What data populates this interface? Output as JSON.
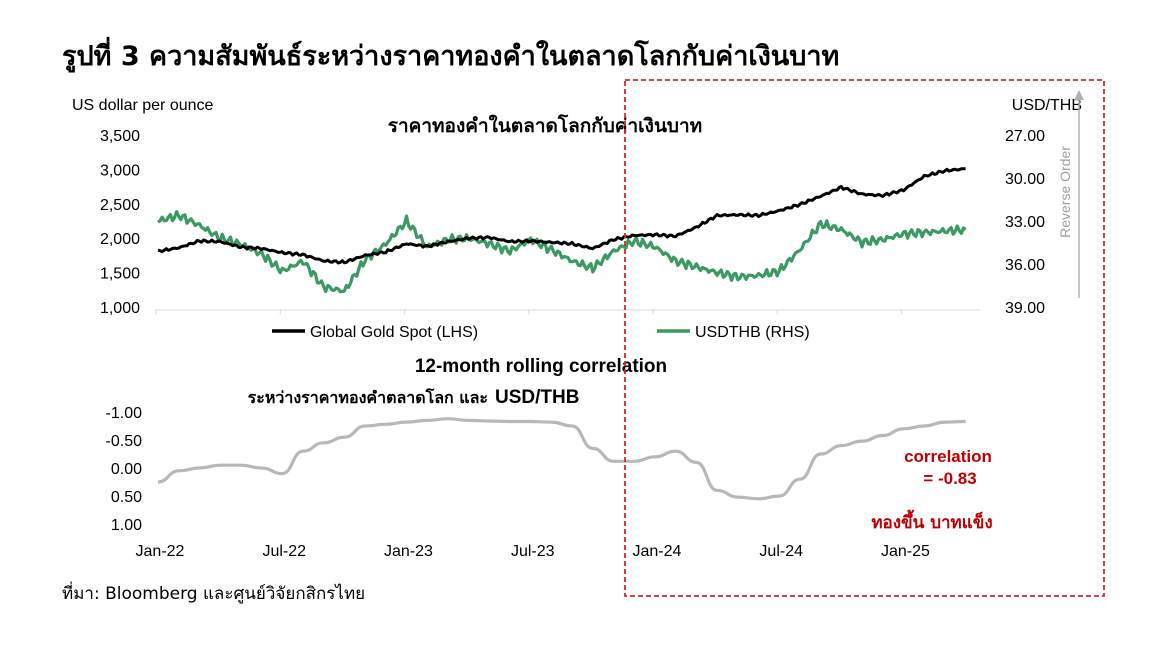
{
  "figure_title": "รูปที่ 3 ความสัมพันธ์ระหว่างราคาทองคำในตลาดโลกกับค่าเงินบาท",
  "source_note": "ที่มา: Bloomberg และศูนย์วิจัยกสิกรไทย",
  "colors": {
    "gold": "#000000",
    "thb": "#3a9a62",
    "corr": "#b8b8b8",
    "highlight": "#d62828",
    "note": "#c00000"
  },
  "chart_data": [
    {
      "type": "line",
      "title": "ราคาทองคำในตลาดโลกกับค่าเงินบาท",
      "y_left_label": "US dollar per ounce",
      "y_right_label": "USD/THB",
      "y_right_note": "Reverse Order",
      "y_left_ticks": [
        "1,000",
        "1,500",
        "2,000",
        "2,500",
        "3,000",
        "3,500"
      ],
      "y_right_ticks": [
        "27.00",
        "30.00",
        "33.00",
        "36.00",
        "39.00"
      ],
      "y_left_range": [
        1000,
        3500
      ],
      "y_right_range": [
        27,
        39
      ],
      "y_right_reversed": true,
      "x_range": [
        "2022-01",
        "2025-04"
      ],
      "series": [
        {
          "name": "Global Gold Spot (LHS)",
          "axis": "left",
          "x": [
            "2022-01",
            "2022-02",
            "2022-03",
            "2022-04",
            "2022-05",
            "2022-06",
            "2022-07",
            "2022-08",
            "2022-09",
            "2022-10",
            "2022-11",
            "2022-12",
            "2023-01",
            "2023-02",
            "2023-03",
            "2023-04",
            "2023-05",
            "2023-06",
            "2023-07",
            "2023-08",
            "2023-09",
            "2023-10",
            "2023-11",
            "2023-12",
            "2024-01",
            "2024-02",
            "2024-03",
            "2024-04",
            "2024-05",
            "2024-06",
            "2024-07",
            "2024-08",
            "2024-09",
            "2024-10",
            "2024-11",
            "2024-12",
            "2025-01",
            "2025-02",
            "2025-03",
            "2025-04"
          ],
          "values": [
            1810,
            1860,
            1960,
            1950,
            1870,
            1850,
            1790,
            1760,
            1670,
            1650,
            1750,
            1800,
            1920,
            1880,
            1950,
            2000,
            2010,
            1950,
            1960,
            1940,
            1920,
            1850,
            1980,
            2040,
            2050,
            2030,
            2160,
            2330,
            2340,
            2330,
            2400,
            2490,
            2610,
            2740,
            2640,
            2620,
            2700,
            2900,
            2980,
            3010
          ]
        },
        {
          "name": "USDTHB (RHS)",
          "axis": "right",
          "x": [
            "2022-01",
            "2022-02",
            "2022-03",
            "2022-04",
            "2022-05",
            "2022-06",
            "2022-07",
            "2022-08",
            "2022-09",
            "2022-10",
            "2022-11",
            "2022-12",
            "2023-01",
            "2023-02",
            "2023-03",
            "2023-04",
            "2023-05",
            "2023-06",
            "2023-07",
            "2023-08",
            "2023-09",
            "2023-10",
            "2023-11",
            "2023-12",
            "2024-01",
            "2024-02",
            "2024-03",
            "2024-04",
            "2024-05",
            "2024-06",
            "2024-07",
            "2024-08",
            "2024-09",
            "2024-10",
            "2024-11",
            "2024-12",
            "2025-01",
            "2025-02",
            "2025-03",
            "2025-04"
          ],
          "values": [
            33.0,
            32.6,
            33.3,
            34.2,
            34.6,
            35.3,
            36.5,
            35.8,
            37.6,
            37.9,
            35.7,
            34.6,
            33.0,
            34.8,
            34.3,
            34.2,
            34.6,
            35.1,
            34.3,
            35.0,
            35.8,
            36.3,
            35.1,
            34.4,
            34.8,
            35.8,
            36.2,
            36.6,
            36.9,
            36.8,
            36.5,
            35.0,
            33.2,
            33.6,
            34.5,
            34.3,
            33.9,
            33.8,
            33.7,
            33.6
          ]
        }
      ]
    },
    {
      "type": "line",
      "title": "12-month rolling correlation",
      "subtitle_thai": "ระหว่างราคาทองคำตลาดโลก และ",
      "subtitle_en": "USD/THB",
      "y_ticks": [
        "-1.00",
        "-0.50",
        "0.00",
        "0.50",
        "1.00"
      ],
      "y_range": [
        -1.0,
        1.0
      ],
      "y_reversed": true,
      "x_tick_labels": [
        "Jan-22",
        "Jul-22",
        "Jan-23",
        "Jul-23",
        "Jan-24",
        "Jul-24",
        "Jan-25"
      ],
      "series": [
        {
          "name": "",
          "x": [
            "2022-01",
            "2022-02",
            "2022-03",
            "2022-04",
            "2022-05",
            "2022-06",
            "2022-07",
            "2022-08",
            "2022-09",
            "2022-10",
            "2022-11",
            "2022-12",
            "2023-01",
            "2023-02",
            "2023-03",
            "2023-04",
            "2023-05",
            "2023-06",
            "2023-07",
            "2023-08",
            "2023-09",
            "2023-10",
            "2023-11",
            "2023-12",
            "2024-01",
            "2024-02",
            "2024-03",
            "2024-04",
            "2024-05",
            "2024-06",
            "2024-07",
            "2024-08",
            "2024-09",
            "2024-10",
            "2024-11",
            "2024-12",
            "2025-01",
            "2025-02",
            "2025-03",
            "2025-04"
          ],
          "values": [
            0.25,
            0.05,
            0.0,
            -0.05,
            -0.05,
            0.0,
            0.1,
            -0.3,
            -0.45,
            -0.55,
            -0.75,
            -0.78,
            -0.82,
            -0.85,
            -0.88,
            -0.85,
            -0.84,
            -0.83,
            -0.83,
            -0.82,
            -0.75,
            -0.35,
            -0.12,
            -0.12,
            -0.2,
            -0.3,
            -0.1,
            0.4,
            0.52,
            0.55,
            0.5,
            0.2,
            -0.25,
            -0.4,
            -0.48,
            -0.58,
            -0.7,
            -0.75,
            -0.82,
            -0.83
          ]
        }
      ]
    }
  ],
  "annotations": {
    "correlation_label": "correlation",
    "correlation_value": "= -0.83",
    "thai_note": "ทองขึ้น บาทแข็ง"
  }
}
